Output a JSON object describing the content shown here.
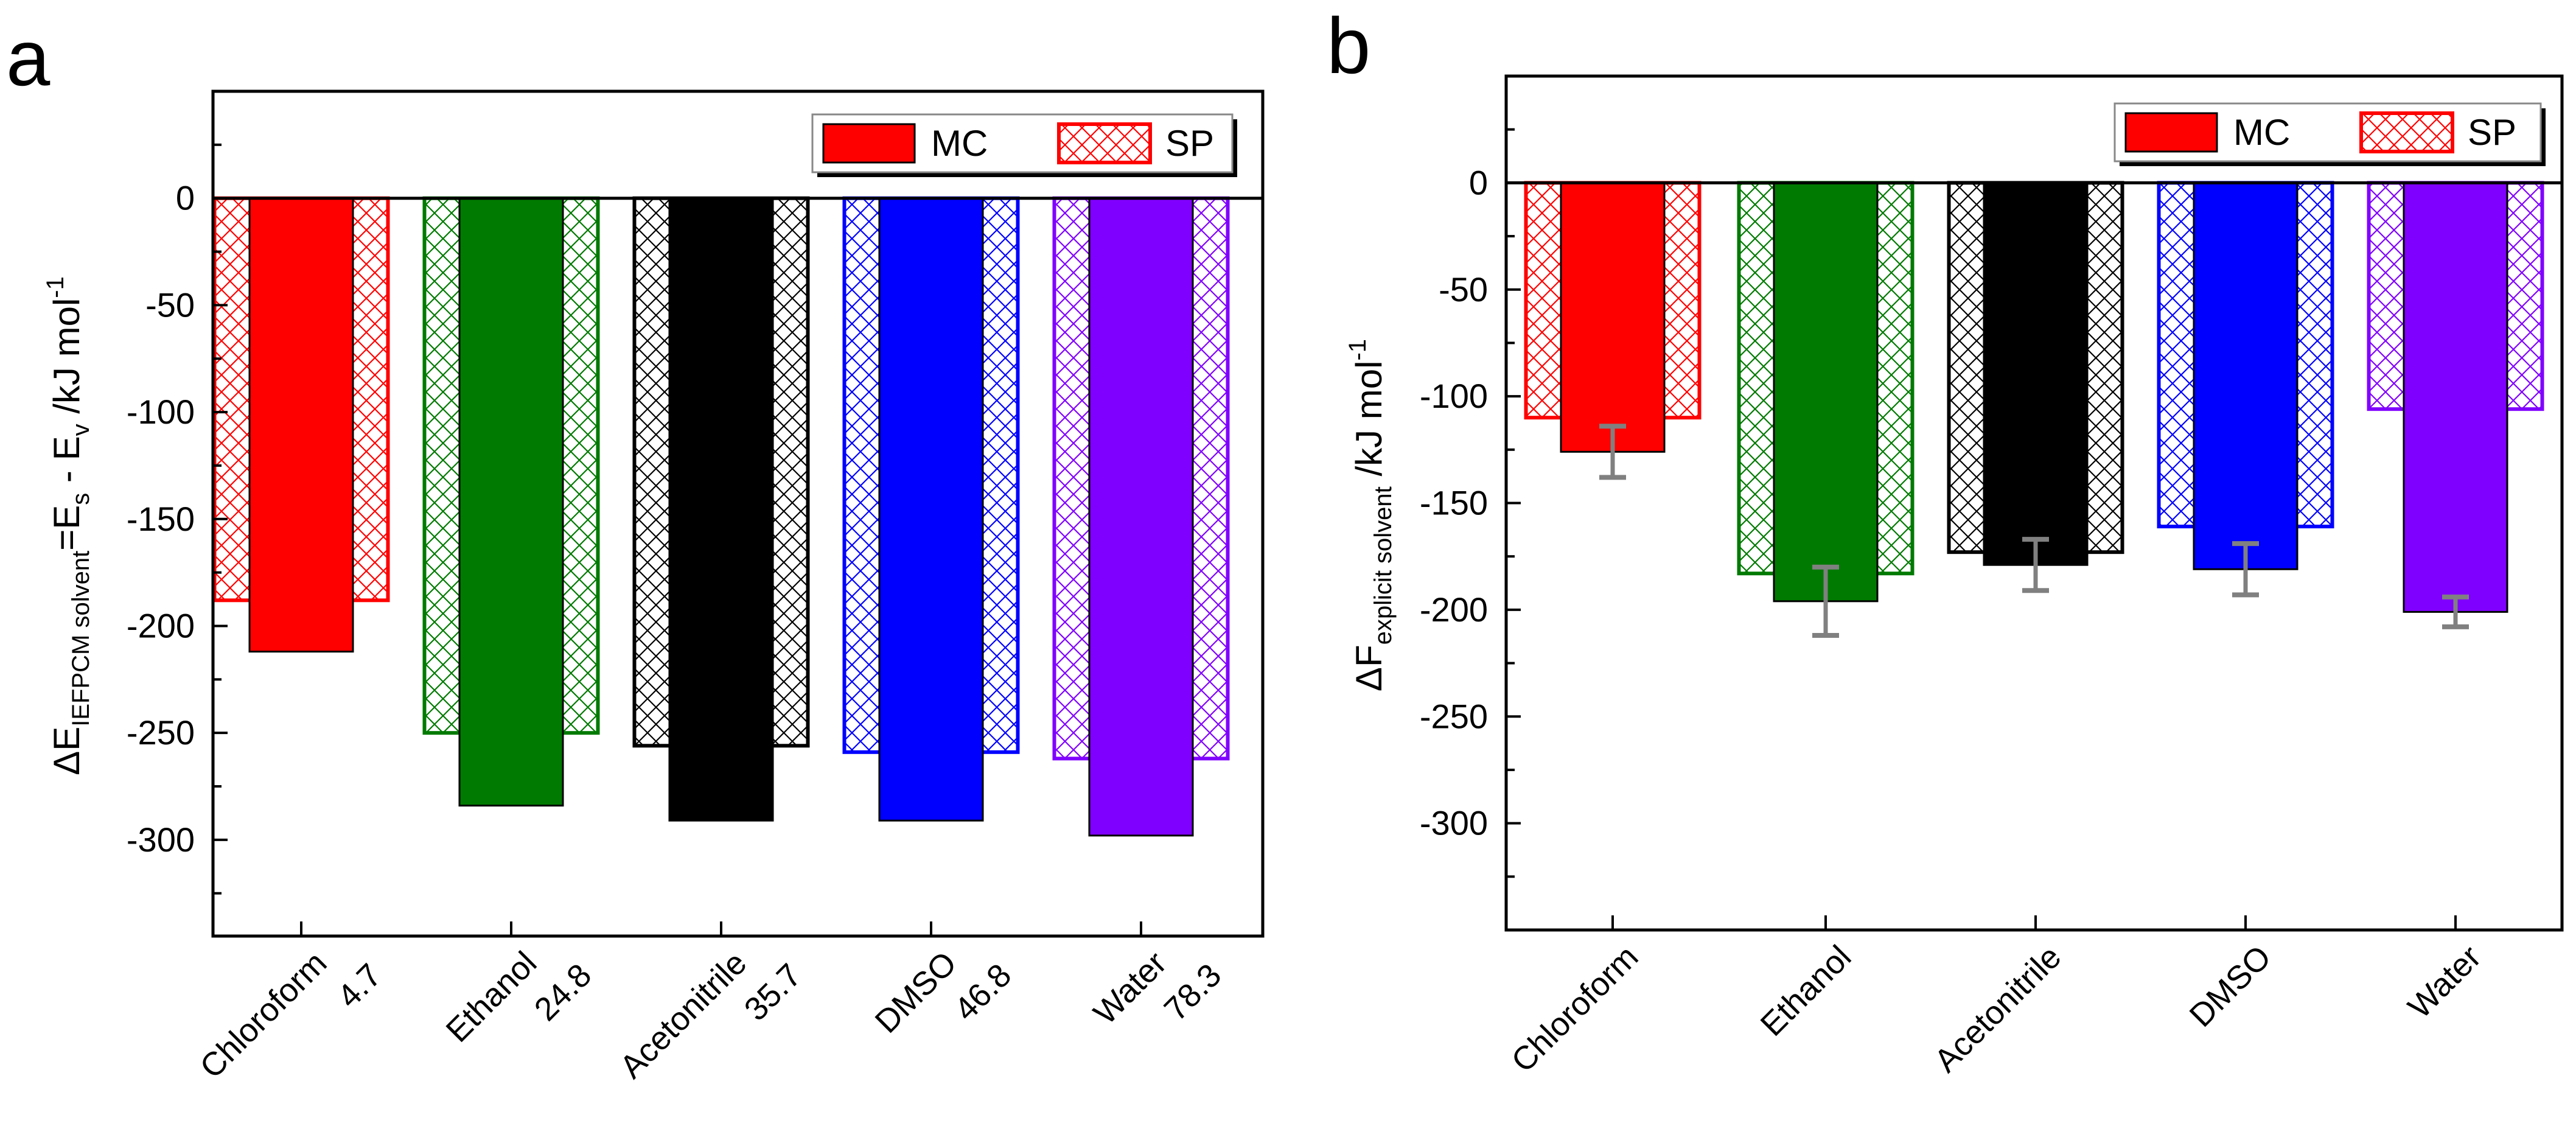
{
  "panels": {
    "a": {
      "letter": "a"
    },
    "b": {
      "letter": "b"
    }
  },
  "legend": {
    "mc_label": "MC",
    "sp_label": "SP",
    "mc_color": "#ff0000",
    "sp_color": "#ff0000"
  },
  "colors": {
    "Chloroform": "#ff0000",
    "Ethanol": "#007a00",
    "Acetonitrile": "#000000",
    "DMSO": "#0000ff",
    "Water": "#8000ff",
    "error_bar": "#808080"
  },
  "chart_data": [
    {
      "panel": "a",
      "type": "bar",
      "title": "",
      "ylabel": {
        "prefix": "ΔE",
        "sub": "IEFPCM solvent",
        "mid": "=E",
        "sub2": "s",
        "mid2": " - E",
        "sub3": "v",
        "unit": " /kJ mol",
        "sup": "-1"
      },
      "xlabel": "",
      "ylim": [
        -345,
        50
      ],
      "yticks": [
        0,
        -50,
        -100,
        -150,
        -200,
        -250,
        -300
      ],
      "ytick_labels": [
        "0",
        "-50",
        "-100",
        "-150",
        "-200",
        "-250",
        "-300"
      ],
      "categories": [
        "Chloroform",
        "Ethanol",
        "Acetonitrile",
        "DMSO",
        "Water"
      ],
      "category_values": [
        "4.7",
        "24.8",
        "35.7",
        "46.8",
        "78.3"
      ],
      "series": [
        {
          "name": "MC",
          "values": [
            -212,
            -284,
            -291,
            -291,
            -298
          ]
        },
        {
          "name": "SP",
          "values": [
            -188,
            -250,
            -256,
            -259,
            -262
          ]
        }
      ]
    },
    {
      "panel": "b",
      "type": "bar",
      "title": "",
      "ylabel": {
        "prefix": "ΔF",
        "sub": "explicit solvent",
        "unit": " /kJ mol",
        "sup": "-1"
      },
      "xlabel": "",
      "ylim": [
        -350,
        50
      ],
      "yticks": [
        0,
        -50,
        -100,
        -150,
        -200,
        -250,
        -300
      ],
      "ytick_labels": [
        "0",
        "-50",
        "-100",
        "-150",
        "-200",
        "-250",
        "-300"
      ],
      "categories": [
        "Chloroform",
        "Ethanol",
        "Acetonitrile",
        "DMSO",
        "Water"
      ],
      "series": [
        {
          "name": "MC",
          "values": [
            -126,
            -196,
            -179,
            -181,
            -201
          ],
          "error": [
            12,
            16,
            12,
            12,
            7
          ]
        },
        {
          "name": "SP",
          "values": [
            -110,
            -183,
            -173,
            -161,
            -106
          ]
        }
      ]
    }
  ]
}
